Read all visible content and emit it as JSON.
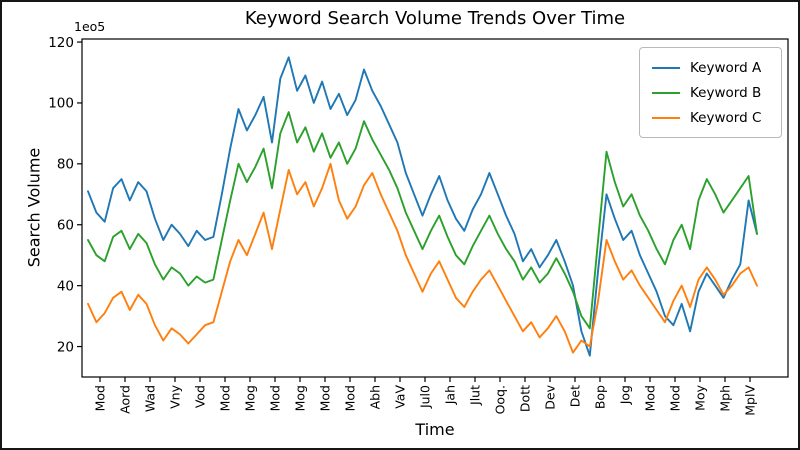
{
  "chart_data": {
    "type": "line",
    "title": "Keyword Search Volume Trends Over Time",
    "xlabel": "Time",
    "ylabel": "Search Volume",
    "offset_text": "1eo5",
    "y_unit_multiplier": "1e5",
    "grid": false,
    "legend_position": "upper right",
    "ylim": [
      10,
      121
    ],
    "y_ticks": [
      20,
      40,
      60,
      80,
      100,
      120
    ],
    "x_tick_labels": [
      "Mod",
      "Aord",
      "Wad",
      "Vny",
      "Vod",
      "Mod",
      "Mog",
      "Mod",
      "Mog",
      "Mod",
      "Mod",
      "Abh",
      "VaV",
      "Jul0",
      "Jah",
      "Jlut",
      "Ooq.",
      "Dott",
      "Dev",
      "Det",
      "Bop",
      "Jog",
      "Mod",
      "Mod",
      "Moy",
      "Mph",
      "MplV"
    ],
    "series": [
      {
        "name": "Keyword A",
        "color": "#1f77b4",
        "values": [
          71,
          64,
          61,
          72,
          75,
          68,
          74,
          71,
          62,
          55,
          60,
          57,
          53,
          58,
          55,
          56,
          70,
          85,
          98,
          91,
          96,
          102,
          87,
          108,
          115,
          104,
          109,
          100,
          107,
          98,
          103,
          96,
          101,
          111,
          104,
          99,
          93,
          87,
          77,
          70,
          63,
          70,
          76,
          68,
          62,
          58,
          65,
          70,
          77,
          70,
          63,
          57,
          48,
          52,
          46,
          50,
          55,
          48,
          40,
          25,
          17,
          45,
          70,
          62,
          55,
          58,
          50,
          44,
          38,
          30,
          27,
          34,
          25,
          38,
          44,
          40,
          36,
          42,
          47,
          68,
          57
        ]
      },
      {
        "name": "Keyword B",
        "color": "#2ca02c",
        "values": [
          55,
          50,
          48,
          56,
          58,
          52,
          57,
          54,
          47,
          42,
          46,
          44,
          40,
          43,
          41,
          42,
          55,
          68,
          80,
          74,
          79,
          85,
          72,
          90,
          97,
          87,
          92,
          84,
          90,
          82,
          87,
          80,
          85,
          94,
          88,
          83,
          78,
          72,
          64,
          58,
          52,
          58,
          63,
          56,
          50,
          47,
          53,
          58,
          63,
          57,
          52,
          48,
          42,
          46,
          41,
          44,
          49,
          44,
          38,
          30,
          26,
          55,
          84,
          74,
          66,
          70,
          63,
          58,
          52,
          47,
          55,
          60,
          52,
          68,
          75,
          70,
          64,
          68,
          72,
          76,
          57
        ]
      },
      {
        "name": "Keyword C",
        "color": "#ff7f0e",
        "values": [
          34,
          28,
          31,
          36,
          38,
          32,
          37,
          34,
          27,
          22,
          26,
          24,
          21,
          24,
          27,
          28,
          38,
          48,
          55,
          50,
          57,
          64,
          52,
          65,
          78,
          70,
          74,
          66,
          72,
          80,
          68,
          62,
          66,
          73,
          77,
          70,
          64,
          58,
          50,
          44,
          38,
          44,
          48,
          42,
          36,
          33,
          38,
          42,
          45,
          40,
          35,
          30,
          25,
          28,
          23,
          26,
          30,
          25,
          18,
          22,
          20,
          35,
          55,
          48,
          42,
          45,
          40,
          36,
          32,
          28,
          35,
          40,
          33,
          42,
          46,
          42,
          37,
          40,
          44,
          46,
          40
        ]
      }
    ]
  }
}
